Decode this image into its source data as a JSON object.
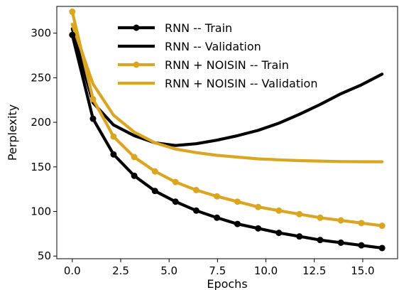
{
  "chart_data": {
    "type": "line",
    "title": "",
    "xlabel": "Epochs",
    "ylabel": "Perplexity",
    "xlim": [
      -0.8,
      16.8
    ],
    "ylim": [
      47,
      330
    ],
    "xticks": [
      0.0,
      2.5,
      5.0,
      7.5,
      10.0,
      12.5,
      15.0
    ],
    "xtick_labels": [
      "0.0",
      "2.5",
      "5.0",
      "7.5",
      "10.0",
      "12.5",
      "15.0"
    ],
    "yticks": [
      50,
      100,
      150,
      200,
      250,
      300
    ],
    "ytick_labels": [
      "50",
      "100",
      "150",
      "200",
      "250",
      "300"
    ],
    "grid": false,
    "legend_position": "top-center",
    "series": [
      {
        "name": "RNN -- Train",
        "color": "#000000",
        "marker": "circle",
        "x": [
          0,
          1.07,
          2.13,
          3.2,
          4.27,
          5.33,
          6.4,
          7.47,
          8.53,
          9.6,
          10.67,
          11.73,
          12.8,
          13.87,
          14.93,
          16.0
        ],
        "y": [
          298,
          204,
          164,
          140,
          123,
          111,
          101,
          93,
          86,
          81,
          76,
          72,
          68,
          65,
          62,
          59
        ]
      },
      {
        "name": "RNN -- Validation",
        "color": "#000000",
        "marker": "none",
        "x": [
          0,
          1.07,
          2.13,
          3.2,
          4.27,
          5.33,
          6.4,
          7.47,
          8.53,
          9.6,
          10.67,
          11.73,
          12.8,
          13.87,
          14.93,
          16.0
        ],
        "y": [
          305,
          222,
          197,
          185,
          177,
          174,
          176,
          180,
          185,
          191,
          199,
          209,
          220,
          232,
          242,
          254
        ]
      },
      {
        "name": "RNN + NOISIN -- Train",
        "color": "#DAA520",
        "marker": "circle",
        "x": [
          0,
          1.07,
          2.13,
          3.2,
          4.27,
          5.33,
          6.4,
          7.47,
          8.53,
          9.6,
          10.67,
          11.73,
          12.8,
          13.87,
          14.93,
          16.0
        ],
        "y": [
          324,
          226,
          184,
          161,
          145,
          133,
          124,
          117,
          111,
          105,
          101,
          97,
          93,
          90,
          87,
          84
        ]
      },
      {
        "name": "RNN + NOISIN -- Validation",
        "color": "#DAA520",
        "marker": "none",
        "x": [
          0,
          1.07,
          2.13,
          3.2,
          4.27,
          5.33,
          6.4,
          7.47,
          8.53,
          9.6,
          10.67,
          11.73,
          12.8,
          13.87,
          14.93,
          16.0
        ],
        "y": [
          310,
          243,
          208,
          189,
          177,
          170,
          166,
          163,
          161,
          159,
          158,
          157,
          156.5,
          156,
          155.8,
          155.7
        ]
      }
    ]
  }
}
